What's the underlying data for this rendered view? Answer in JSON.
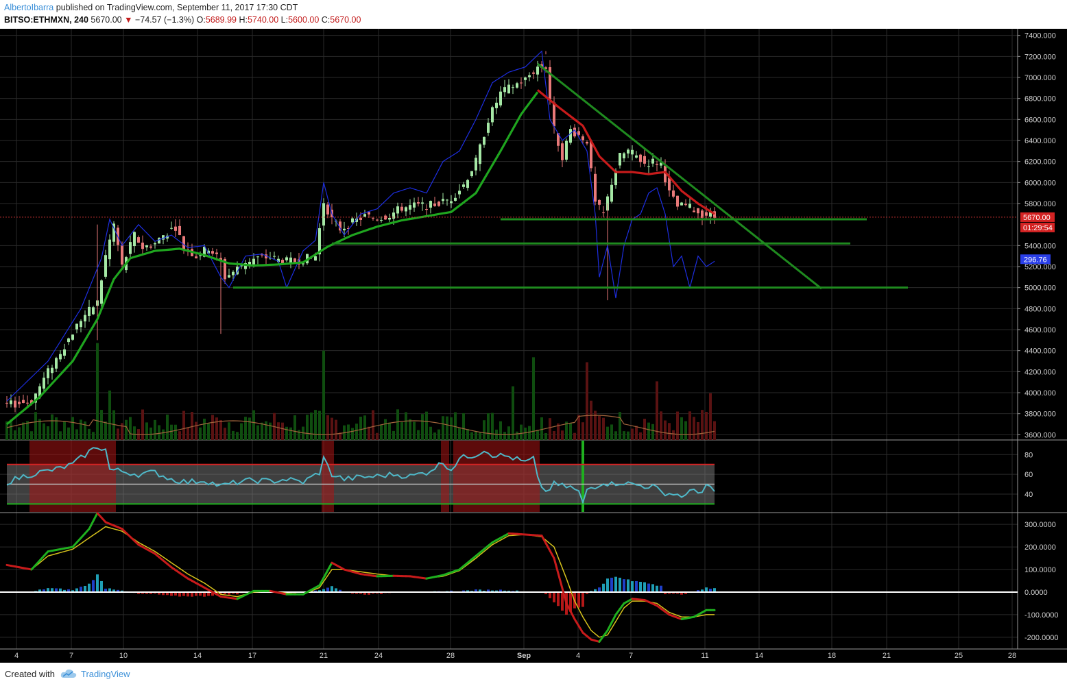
{
  "header": {
    "author": "AlbertoIbarra",
    "published": " published on TradingView.com, September 11, 2017 17:30 CDT",
    "symbol": "BITSO:ETHMXN, 240",
    "last": "5670.00",
    "arrow": "▼",
    "change": "−74.57 (−1.3%)",
    "o_label": "O:",
    "o_value": "5689.99",
    "h_label": "H:",
    "h_value": "5740.00",
    "l_label": "L:",
    "l_value": "5600.00",
    "c_label": "C:",
    "c_value": "5670.00"
  },
  "footer": {
    "created": "Created with",
    "brand": "TradingView"
  },
  "colors": {
    "background": "#000000",
    "grid": "#2a2a2a",
    "candle_up": "#a5e8a5",
    "candle_down": "#e87979",
    "ema_green": "#1fa51f",
    "ema_red": "#c81b1b",
    "blue_line": "#1d2ee0",
    "trend": "#1f8a1f",
    "rsi_line": "#4fb8c8",
    "macd_yellow": "#d6c21c",
    "price_tag": "#d42323",
    "blue_tag": "#2a3fe8"
  },
  "chart_data": [
    {
      "type": "candlestick",
      "title": "BITSO:ETHMXN, 240",
      "x_ticks": [
        "4",
        "7",
        "10",
        "14",
        "17",
        "21",
        "24",
        "28",
        "Sep",
        "4",
        "7",
        "11",
        "14",
        "18",
        "21",
        "25",
        "28"
      ],
      "y_ticks": [
        "7400.000",
        "7200.000",
        "7000.000",
        "6800.000",
        "6600.000",
        "6400.000",
        "6200.000",
        "6000.000",
        "5800.000",
        "5400.000",
        "5200.000",
        "5000.000",
        "4800.000",
        "4600.000",
        "4400.000",
        "4200.000",
        "4000.000",
        "3800.000",
        "3600.000"
      ],
      "ylim": [
        3550,
        7450
      ],
      "last_price_label": "5670.00",
      "countdown_label": "01:29:54",
      "blue_line_label": "296.76",
      "close_anchors": [
        [
          0,
          3880
        ],
        [
          6,
          3920
        ],
        [
          10,
          4200
        ],
        [
          14,
          4450
        ],
        [
          18,
          4700
        ],
        [
          22,
          4860
        ],
        [
          24,
          5300
        ],
        [
          26,
          5600
        ],
        [
          28,
          5200
        ],
        [
          31,
          5500
        ],
        [
          33,
          5380
        ],
        [
          36,
          5420
        ],
        [
          38,
          5500
        ],
        [
          41,
          5580
        ],
        [
          43,
          5380
        ],
        [
          46,
          5300
        ],
        [
          49,
          5380
        ],
        [
          52,
          5250
        ],
        [
          53,
          5100
        ],
        [
          55,
          5150
        ],
        [
          58,
          5250
        ],
        [
          61,
          5280
        ],
        [
          64,
          5290
        ],
        [
          67,
          5250
        ],
        [
          70,
          5250
        ],
        [
          73,
          5280
        ],
        [
          75,
          5300
        ],
        [
          77,
          5820
        ],
        [
          79,
          5650
        ],
        [
          81,
          5560
        ],
        [
          84,
          5620
        ],
        [
          87,
          5680
        ],
        [
          90,
          5660
        ],
        [
          93,
          5690
        ],
        [
          96,
          5760
        ],
        [
          99,
          5780
        ],
        [
          102,
          5780
        ],
        [
          105,
          5800
        ],
        [
          108,
          5850
        ],
        [
          111,
          5980
        ],
        [
          114,
          6200
        ],
        [
          117,
          6600
        ],
        [
          120,
          6850
        ],
        [
          123,
          6920
        ],
        [
          126,
          6980
        ],
        [
          129,
          7100
        ],
        [
          131,
          7100
        ],
        [
          133,
          6500
        ],
        [
          135,
          6250
        ],
        [
          137,
          6500
        ],
        [
          139,
          6450
        ],
        [
          141,
          6400
        ],
        [
          143,
          5800
        ],
        [
          145,
          5700
        ],
        [
          147,
          6000
        ],
        [
          149,
          6250
        ],
        [
          151,
          6300
        ],
        [
          153,
          6250
        ],
        [
          155,
          6180
        ],
        [
          157,
          6200
        ],
        [
          159,
          6180
        ],
        [
          161,
          5900
        ],
        [
          163,
          5770
        ],
        [
          165,
          5780
        ],
        [
          167,
          5740
        ],
        [
          169,
          5700
        ],
        [
          171,
          5690
        ],
        [
          172,
          5670
        ]
      ],
      "ema_green_anchors": [
        [
          0,
          3700
        ],
        [
          8,
          3960
        ],
        [
          16,
          4300
        ],
        [
          22,
          4700
        ],
        [
          26,
          5080
        ],
        [
          30,
          5280
        ],
        [
          36,
          5350
        ],
        [
          42,
          5370
        ],
        [
          48,
          5310
        ],
        [
          54,
          5230
        ],
        [
          60,
          5210
        ],
        [
          66,
          5220
        ],
        [
          72,
          5240
        ],
        [
          78,
          5390
        ],
        [
          84,
          5500
        ],
        [
          90,
          5580
        ],
        [
          96,
          5640
        ],
        [
          102,
          5680
        ],
        [
          108,
          5720
        ],
        [
          114,
          5900
        ],
        [
          120,
          6300
        ],
        [
          125,
          6650
        ],
        [
          129,
          6860
        ]
      ],
      "ema_red_anchors": [
        [
          129,
          6880
        ],
        [
          134,
          6720
        ],
        [
          140,
          6540
        ],
        [
          144,
          6250
        ],
        [
          148,
          6100
        ],
        [
          152,
          6100
        ],
        [
          156,
          6080
        ],
        [
          160,
          6100
        ],
        [
          164,
          5920
        ],
        [
          168,
          5800
        ],
        [
          172,
          5700
        ]
      ],
      "blue_line_anchors": [
        [
          0,
          3920
        ],
        [
          10,
          4300
        ],
        [
          18,
          4800
        ],
        [
          23,
          5280
        ],
        [
          25,
          5650
        ],
        [
          28,
          5400
        ],
        [
          32,
          5600
        ],
        [
          36,
          5440
        ],
        [
          40,
          5500
        ],
        [
          44,
          5380
        ],
        [
          48,
          5400
        ],
        [
          52,
          5100
        ],
        [
          54,
          5000
        ],
        [
          58,
          5300
        ],
        [
          62,
          5320
        ],
        [
          66,
          5250
        ],
        [
          68,
          5000
        ],
        [
          72,
          5350
        ],
        [
          75,
          5450
        ],
        [
          77,
          6000
        ],
        [
          79,
          5700
        ],
        [
          82,
          5500
        ],
        [
          86,
          5700
        ],
        [
          90,
          5750
        ],
        [
          94,
          5900
        ],
        [
          98,
          5950
        ],
        [
          102,
          5900
        ],
        [
          106,
          6200
        ],
        [
          110,
          6300
        ],
        [
          114,
          6600
        ],
        [
          118,
          6950
        ],
        [
          122,
          7050
        ],
        [
          126,
          7100
        ],
        [
          130,
          7250
        ],
        [
          132,
          6600
        ],
        [
          135,
          6400
        ],
        [
          138,
          6500
        ],
        [
          141,
          6300
        ],
        [
          143,
          5700
        ],
        [
          144,
          5100
        ],
        [
          146,
          5400
        ],
        [
          148,
          4900
        ],
        [
          150,
          5400
        ],
        [
          152,
          5650
        ],
        [
          154,
          5700
        ],
        [
          156,
          5900
        ],
        [
          158,
          5950
        ],
        [
          160,
          5700
        ],
        [
          162,
          5200
        ],
        [
          164,
          5300
        ],
        [
          166,
          5000
        ],
        [
          168,
          5300
        ],
        [
          170,
          5200
        ],
        [
          172,
          5250
        ]
      ],
      "trend_line_x": [
        129,
        198
      ],
      "trend_line_y": [
        7130,
        4990
      ],
      "support_levels": [
        {
          "x0": 120,
          "x1": 209,
          "y": 5650
        },
        {
          "x0": 79,
          "x1": 205,
          "y": 5420
        },
        {
          "x0": 55,
          "x1": 219,
          "y": 5000
        }
      ],
      "volume_ma_level": 3720
    },
    {
      "type": "line",
      "title": "RSI",
      "y_ticks": [
        "80",
        "60",
        "40"
      ],
      "ylim": [
        24,
        92
      ],
      "band_upper": 70,
      "band_mid": 50,
      "band_lower": 30,
      "overbought_zones": [
        [
          6,
          26
        ],
        [
          77,
          79
        ],
        [
          106,
          107
        ],
        [
          109,
          128
        ],
        [
          129,
          129
        ]
      ],
      "oversold_marker_x": 140,
      "anchors": [
        [
          0,
          52
        ],
        [
          4,
          58
        ],
        [
          8,
          62
        ],
        [
          12,
          65
        ],
        [
          16,
          70
        ],
        [
          20,
          83
        ],
        [
          22,
          88
        ],
        [
          24,
          85
        ],
        [
          25,
          65
        ],
        [
          28,
          63
        ],
        [
          32,
          60
        ],
        [
          36,
          62
        ],
        [
          40,
          55
        ],
        [
          44,
          52
        ],
        [
          48,
          54
        ],
        [
          52,
          48
        ],
        [
          56,
          52
        ],
        [
          60,
          54
        ],
        [
          64,
          53
        ],
        [
          68,
          55
        ],
        [
          72,
          52
        ],
        [
          76,
          62
        ],
        [
          77,
          76
        ],
        [
          79,
          60
        ],
        [
          82,
          55
        ],
        [
          86,
          57
        ],
        [
          90,
          58
        ],
        [
          94,
          60
        ],
        [
          98,
          58
        ],
        [
          102,
          62
        ],
        [
          106,
          72
        ],
        [
          108,
          65
        ],
        [
          110,
          76
        ],
        [
          114,
          80
        ],
        [
          116,
          85
        ],
        [
          118,
          80
        ],
        [
          122,
          78
        ],
        [
          126,
          72
        ],
        [
          128,
          76
        ],
        [
          129,
          55
        ],
        [
          131,
          42
        ],
        [
          133,
          50
        ],
        [
          135,
          48
        ],
        [
          137,
          47
        ],
        [
          139,
          42
        ],
        [
          140,
          30
        ],
        [
          141,
          45
        ],
        [
          143,
          48
        ],
        [
          145,
          52
        ],
        [
          147,
          50
        ],
        [
          149,
          52
        ],
        [
          152,
          50
        ],
        [
          155,
          48
        ],
        [
          157,
          48
        ],
        [
          159,
          42
        ],
        [
          162,
          40
        ],
        [
          165,
          38
        ],
        [
          167,
          45
        ],
        [
          169,
          42
        ],
        [
          170,
          48
        ],
        [
          172,
          42
        ]
      ]
    },
    {
      "type": "line",
      "title": "MACD",
      "y_ticks": [
        "300.0000",
        "200.0000",
        "100.0000",
        "0.0000",
        "-100.0000",
        "-200.0000"
      ],
      "ylim": [
        -240,
        340
      ],
      "macd_anchors": [
        [
          0,
          120
        ],
        [
          6,
          100
        ],
        [
          10,
          180
        ],
        [
          16,
          200
        ],
        [
          20,
          280
        ],
        [
          22,
          350
        ],
        [
          24,
          310
        ],
        [
          28,
          280
        ],
        [
          32,
          210
        ],
        [
          36,
          170
        ],
        [
          40,
          110
        ],
        [
          44,
          60
        ],
        [
          48,
          20
        ],
        [
          52,
          -20
        ],
        [
          56,
          -30
        ],
        [
          60,
          5
        ],
        [
          64,
          5
        ],
        [
          68,
          -10
        ],
        [
          72,
          -10
        ],
        [
          76,
          30
        ],
        [
          79,
          130
        ],
        [
          82,
          100
        ],
        [
          86,
          80
        ],
        [
          90,
          70
        ],
        [
          94,
          72
        ],
        [
          98,
          70
        ],
        [
          102,
          60
        ],
        [
          106,
          75
        ],
        [
          110,
          100
        ],
        [
          114,
          160
        ],
        [
          118,
          220
        ],
        [
          122,
          260
        ],
        [
          126,
          255
        ],
        [
          130,
          250
        ],
        [
          133,
          150
        ],
        [
          136,
          -50
        ],
        [
          138,
          -120
        ],
        [
          140,
          -180
        ],
        [
          142,
          -210
        ],
        [
          144,
          -220
        ],
        [
          146,
          -170
        ],
        [
          148,
          -100
        ],
        [
          150,
          -50
        ],
        [
          152,
          -30
        ],
        [
          155,
          -35
        ],
        [
          158,
          -60
        ],
        [
          161,
          -100
        ],
        [
          164,
          -120
        ],
        [
          167,
          -110
        ],
        [
          170,
          -80
        ],
        [
          172,
          -80
        ]
      ],
      "signal_anchors": [
        [
          0,
          120
        ],
        [
          6,
          100
        ],
        [
          10,
          160
        ],
        [
          16,
          190
        ],
        [
          20,
          240
        ],
        [
          24,
          290
        ],
        [
          28,
          270
        ],
        [
          32,
          220
        ],
        [
          36,
          180
        ],
        [
          40,
          130
        ],
        [
          44,
          80
        ],
        [
          48,
          40
        ],
        [
          52,
          -10
        ],
        [
          56,
          -20
        ],
        [
          60,
          0
        ],
        [
          64,
          5
        ],
        [
          68,
          -5
        ],
        [
          72,
          -10
        ],
        [
          76,
          20
        ],
        [
          79,
          100
        ],
        [
          82,
          100
        ],
        [
          86,
          90
        ],
        [
          90,
          80
        ],
        [
          94,
          72
        ],
        [
          98,
          70
        ],
        [
          102,
          62
        ],
        [
          106,
          70
        ],
        [
          110,
          95
        ],
        [
          114,
          150
        ],
        [
          118,
          210
        ],
        [
          122,
          250
        ],
        [
          126,
          255
        ],
        [
          130,
          245
        ],
        [
          133,
          200
        ],
        [
          136,
          60
        ],
        [
          138,
          -40
        ],
        [
          140,
          -110
        ],
        [
          142,
          -170
        ],
        [
          144,
          -200
        ],
        [
          146,
          -190
        ],
        [
          148,
          -130
        ],
        [
          150,
          -70
        ],
        [
          152,
          -40
        ],
        [
          155,
          -40
        ],
        [
          158,
          -50
        ],
        [
          161,
          -90
        ],
        [
          164,
          -110
        ],
        [
          167,
          -110
        ],
        [
          170,
          -100
        ],
        [
          172,
          -100
        ]
      ]
    }
  ]
}
